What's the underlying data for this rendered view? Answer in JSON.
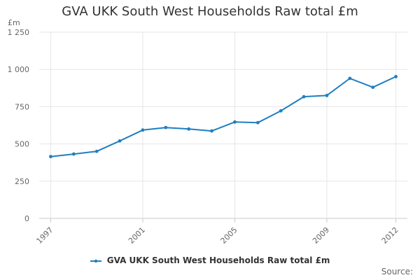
{
  "chart_data": {
    "type": "line",
    "title": "GVA UKK South West Households Raw total £m",
    "ylabel": "£m",
    "xlabel": "",
    "ylim": [
      0,
      1250
    ],
    "y_ticks": [
      0,
      250,
      500,
      750,
      1000,
      1250
    ],
    "y_tick_labels": [
      "0",
      "250",
      "500",
      "750",
      "1 000",
      "1 250"
    ],
    "x_range": [
      1997,
      2012
    ],
    "x_ticks": [
      1997,
      2001,
      2005,
      2009,
      2012
    ],
    "x_tick_labels": [
      "1997",
      "2001",
      "2005",
      "2009",
      "2012"
    ],
    "grid": true,
    "legend_position": "bottom",
    "series": [
      {
        "name": "GVA UKK South West Households Raw total £m",
        "color": "#1f7fbf",
        "x": [
          1997,
          1998,
          1999,
          2000,
          2001,
          2002,
          2003,
          2004,
          2005,
          2006,
          2007,
          2008,
          2009,
          2010,
          2011,
          2012
        ],
        "values": [
          415,
          432,
          450,
          520,
          593,
          610,
          600,
          587,
          647,
          643,
          722,
          817,
          825,
          940,
          880,
          952
        ]
      }
    ]
  },
  "source_label": "Source:"
}
